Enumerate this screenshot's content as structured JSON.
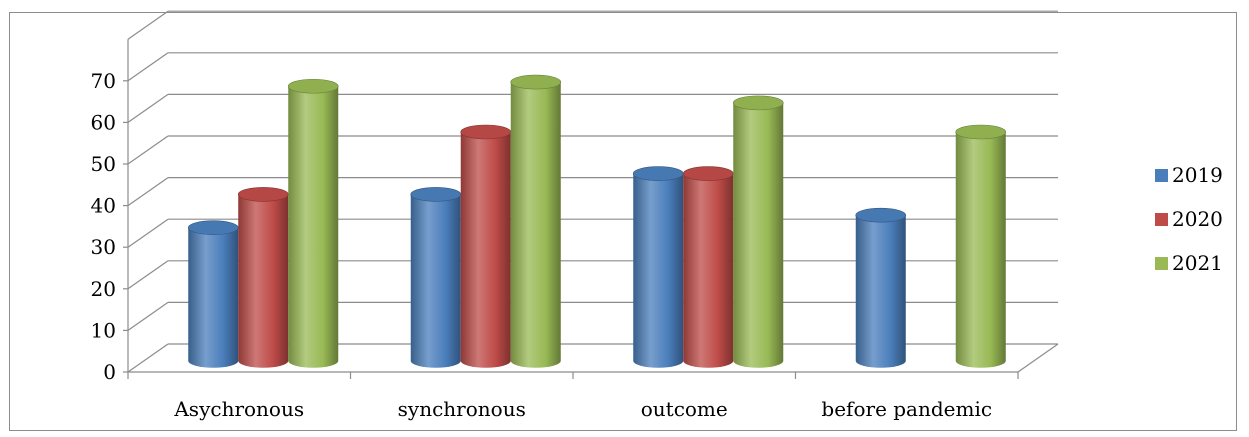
{
  "chart_data": {
    "type": "bar",
    "style": "3d-cylinder",
    "categories": [
      "Asychronous",
      "synchronous",
      "outcome",
      "before pandemic"
    ],
    "series": [
      {
        "name": "2019",
        "values": [
          32,
          40,
          45,
          35
        ],
        "color": "#4a7ebb"
      },
      {
        "name": "2020",
        "values": [
          40,
          55,
          45,
          null
        ],
        "color": "#be4b48"
      },
      {
        "name": "2021",
        "values": [
          66,
          67,
          62,
          55
        ],
        "color": "#98b954"
      }
    ],
    "ylim": [
      0,
      70
    ],
    "yticks": [
      "0",
      "10",
      "20",
      "30",
      "40",
      "50",
      "60",
      "70"
    ],
    "grid": true,
    "legend": "right"
  }
}
